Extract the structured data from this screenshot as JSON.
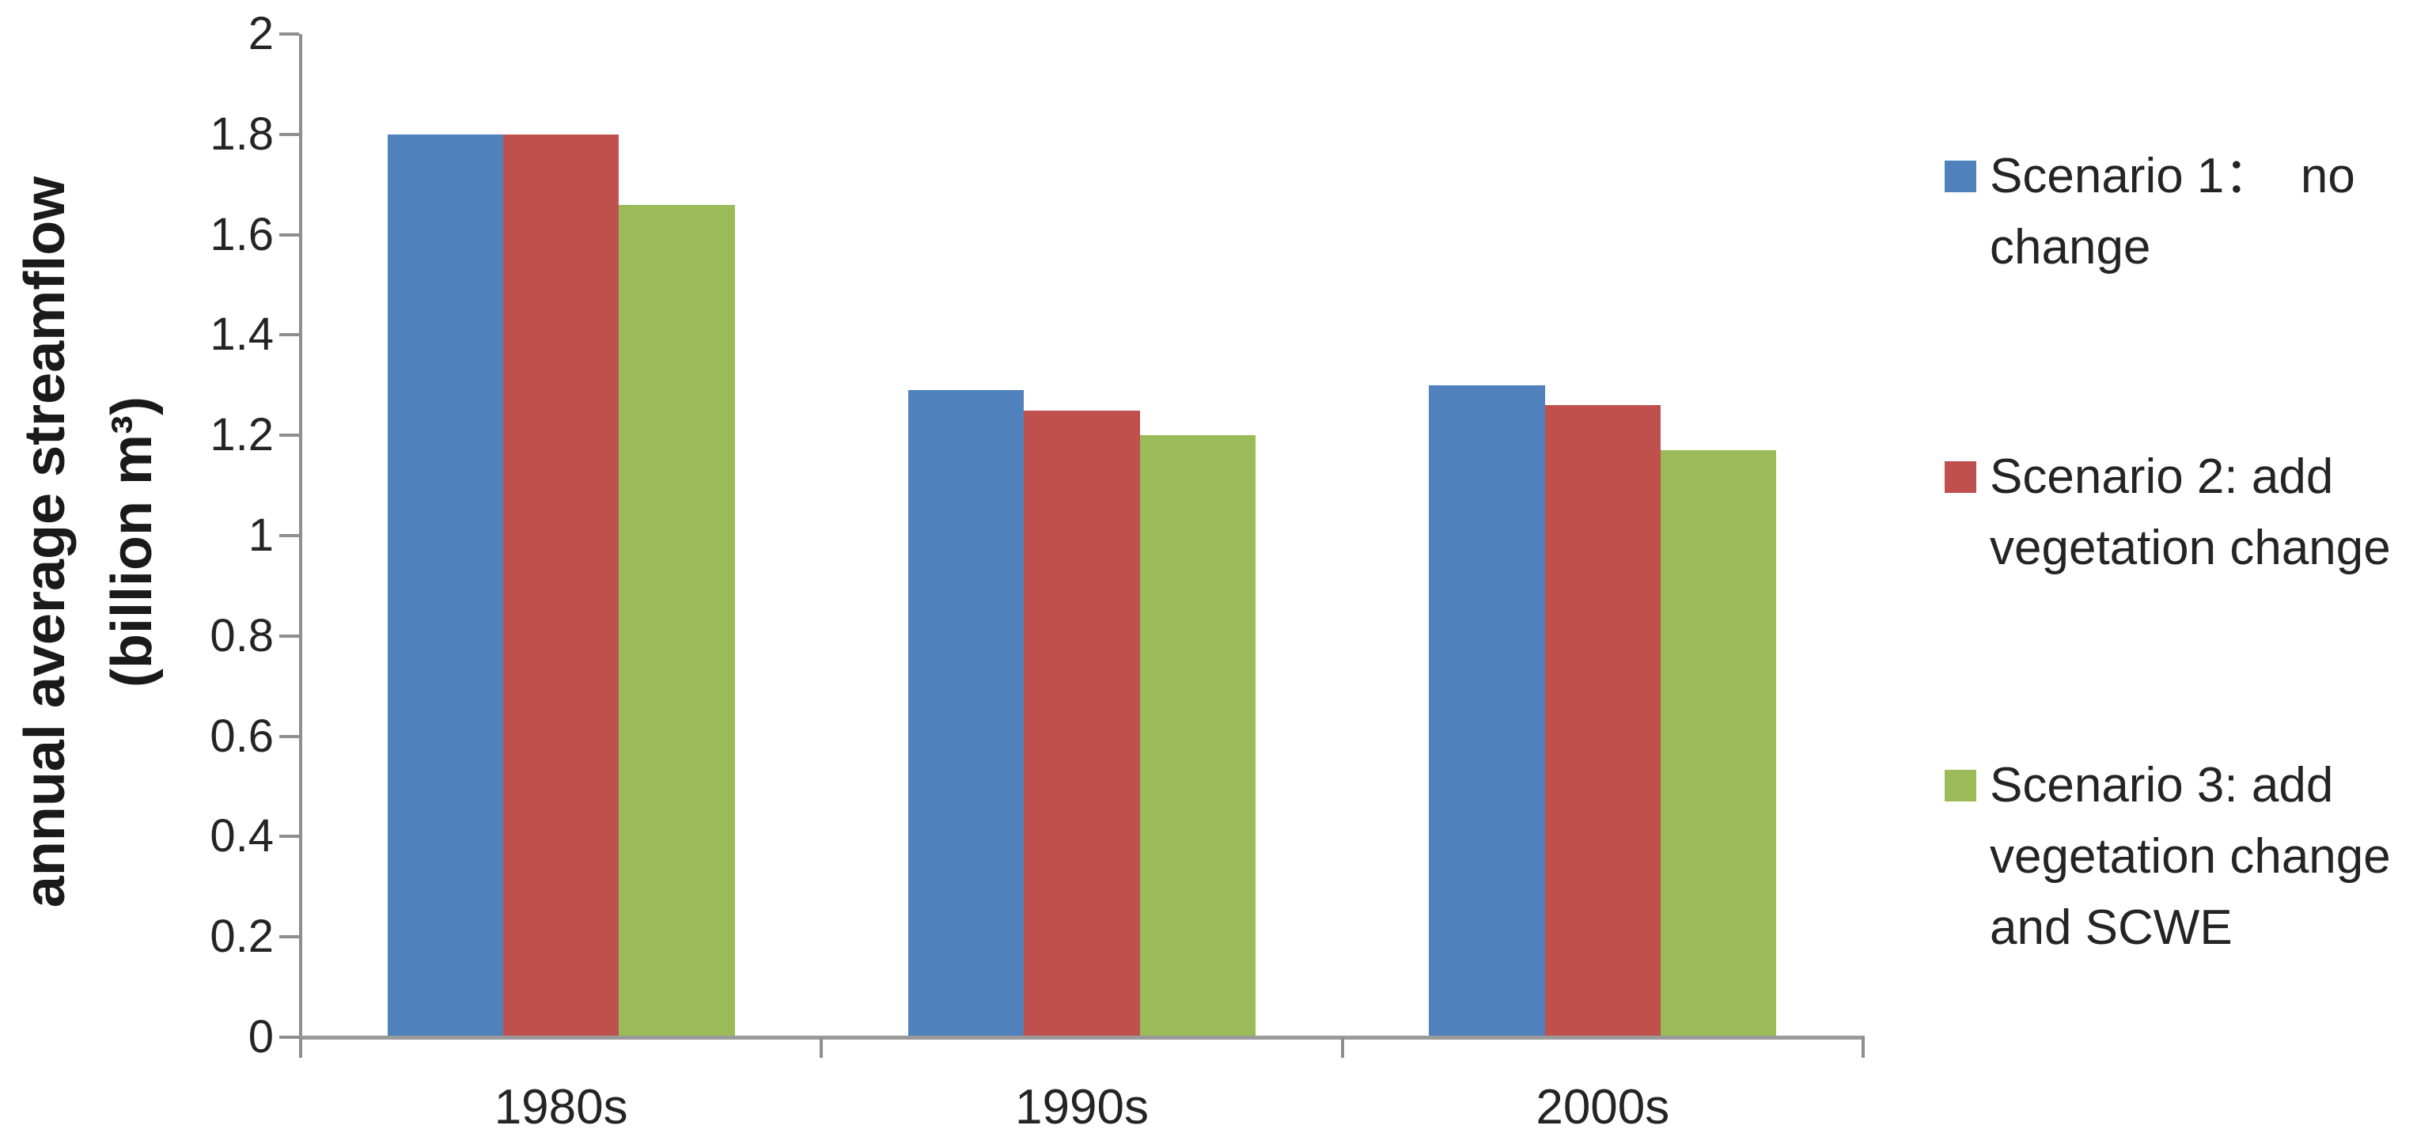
{
  "chart_data": {
    "type": "bar",
    "title": "",
    "categories": [
      "1980s",
      "1990s",
      "2000s"
    ],
    "series": [
      {
        "name": "Scenario 1：  no change",
        "color": "#4F81BD",
        "values": [
          1.8,
          1.29,
          1.3
        ]
      },
      {
        "name": "Scenario 2: add vegetation change",
        "color": "#C0504D",
        "values": [
          1.8,
          1.25,
          1.26
        ]
      },
      {
        "name": "Scenario 3: add vegetation change and SCWE",
        "color": "#9BBB59",
        "values": [
          1.66,
          1.2,
          1.17
        ]
      }
    ],
    "ylabel_lines": [
      "annual average streamflow",
      "(billion m³)"
    ],
    "xlabel": "",
    "ylim": [
      0,
      2
    ],
    "ytick_step": 0.2,
    "ytick_labels": [
      "2",
      "1.8",
      "1.6",
      "1.4",
      "1.2",
      "1",
      "0.8",
      "0.6",
      "0.4",
      "0.2",
      "0"
    ],
    "grid": false,
    "legend_position": "right",
    "legend_items": [
      {
        "lines": [
          "Scenario 1：  no",
          "change"
        ],
        "color": "#4F81BD"
      },
      {
        "lines": [
          "Scenario 2: add",
          "vegetation change"
        ],
        "color": "#C0504D"
      },
      {
        "lines": [
          "Scenario 3: add",
          "vegetation change",
          "and SCWE"
        ],
        "color": "#9BBB59"
      }
    ]
  },
  "style": {
    "axis_color": "#8e8e8e",
    "baseline_color": "#9a9a9a",
    "text_color": "#242424",
    "background": "#FFFFFF"
  }
}
